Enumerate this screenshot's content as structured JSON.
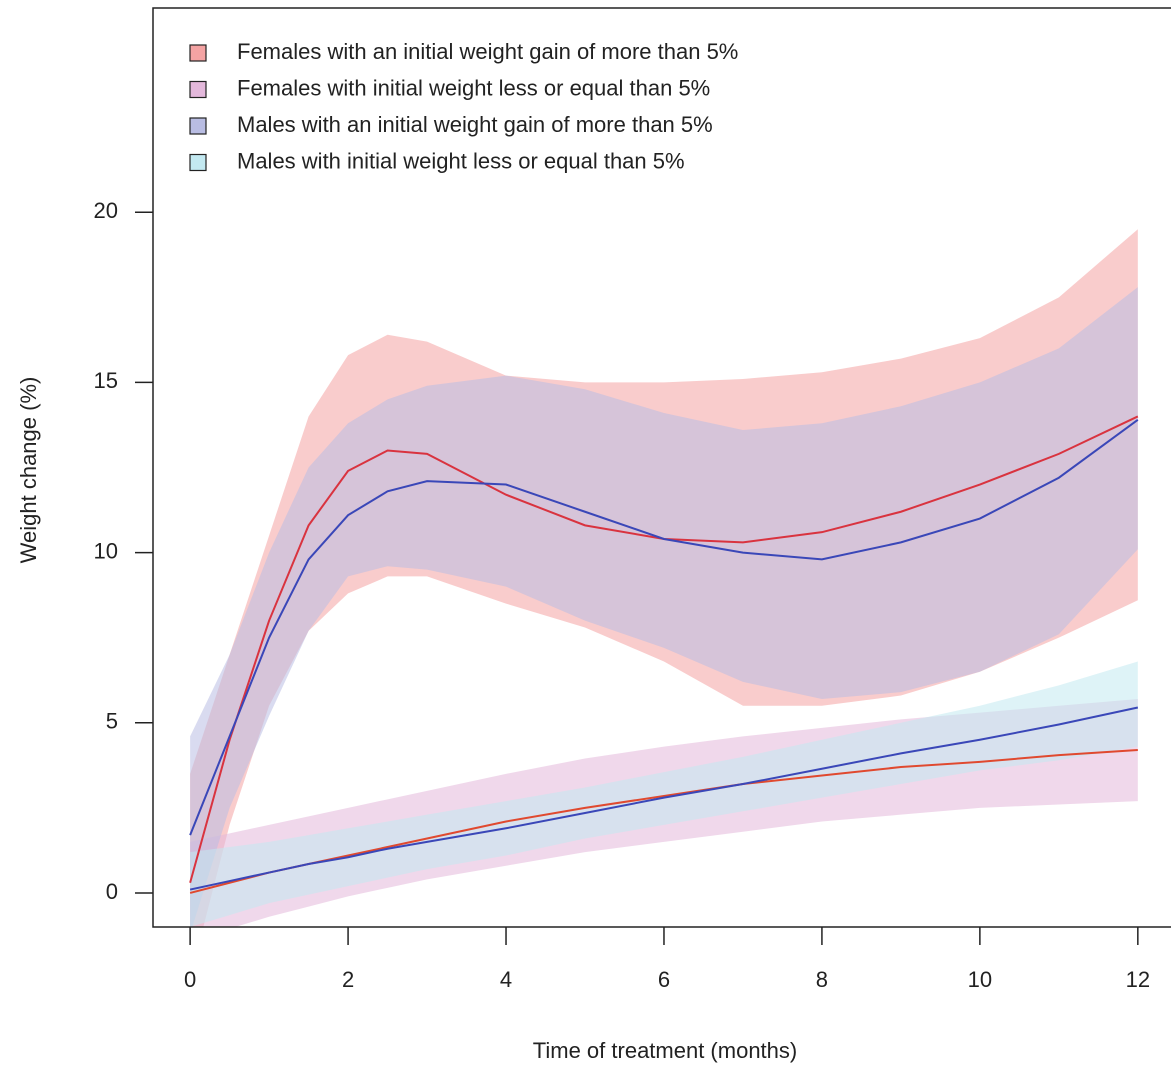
{
  "chart_data": {
    "type": "line-band",
    "x_label": "Time of treatment (months)",
    "y_label": "Weight change (%)",
    "x": [
      0,
      0.5,
      1,
      1.5,
      2,
      2.5,
      3,
      4,
      5,
      6,
      7,
      8,
      9,
      10,
      11,
      12
    ],
    "xlim": [
      -0.47,
      12.42
    ],
    "ylim": [
      -1.0,
      26.0
    ],
    "xticks": [
      0,
      2,
      4,
      6,
      8,
      10,
      12
    ],
    "yticks": [
      0,
      5,
      10,
      15,
      20
    ],
    "legend": "top-left",
    "series": [
      {
        "name": "Females with an initial weight gain of more than 5%",
        "color": "#f4a3a3",
        "line_color": "#d9333f",
        "values": [
          0.3,
          4.5,
          8.0,
          10.8,
          12.4,
          13.0,
          12.9,
          11.7,
          10.8,
          10.4,
          10.3,
          10.6,
          11.2,
          12.0,
          12.9,
          14.0
        ],
        "upper": [
          3.5,
          7.0,
          10.5,
          14.0,
          15.8,
          16.4,
          16.2,
          15.2,
          15.0,
          15.0,
          15.1,
          15.3,
          15.7,
          16.3,
          17.5,
          19.5
        ],
        "lower": [
          -2.5,
          2.0,
          5.5,
          7.7,
          8.8,
          9.3,
          9.3,
          8.5,
          7.8,
          6.8,
          5.5,
          5.5,
          5.8,
          6.5,
          7.5,
          8.6
        ]
      },
      {
        "name": "Females with initial weight less or equal than 5%",
        "color": "#e3b8db",
        "line_color": "#e0492f",
        "values": [
          0.0,
          0.3,
          0.6,
          0.85,
          1.1,
          1.35,
          1.6,
          2.1,
          2.5,
          2.85,
          3.2,
          3.45,
          3.7,
          3.85,
          4.05,
          4.2
        ],
        "upper": [
          1.5,
          1.75,
          2.0,
          2.25,
          2.5,
          2.75,
          3.0,
          3.5,
          3.95,
          4.3,
          4.6,
          4.85,
          5.1,
          5.3,
          5.5,
          5.7
        ],
        "lower": [
          -1.4,
          -1.05,
          -0.7,
          -0.4,
          -0.1,
          0.15,
          0.4,
          0.8,
          1.2,
          1.5,
          1.8,
          2.1,
          2.3,
          2.5,
          2.6,
          2.7
        ]
      },
      {
        "name": "Males with an initial weight gain of more than 5%",
        "color": "#b9bde3",
        "line_color": "#3a47b8",
        "values": [
          1.7,
          4.6,
          7.5,
          9.8,
          11.1,
          11.8,
          12.1,
          12.0,
          11.2,
          10.4,
          10.0,
          9.8,
          10.3,
          11.0,
          12.2,
          13.9
        ],
        "upper": [
          4.6,
          7.0,
          10.0,
          12.5,
          13.8,
          14.5,
          14.9,
          15.2,
          14.8,
          14.1,
          13.6,
          13.8,
          14.3,
          15.0,
          16.0,
          17.8
        ],
        "lower": [
          -1.2,
          2.5,
          5.2,
          7.7,
          9.3,
          9.6,
          9.5,
          9.0,
          8.0,
          7.2,
          6.2,
          5.7,
          5.9,
          6.5,
          7.6,
          10.1
        ]
      },
      {
        "name": "Males with initial weight less or equal than 5%",
        "color": "#c3e9f1",
        "line_color": "#3a47b8",
        "values": [
          0.1,
          0.35,
          0.6,
          0.85,
          1.05,
          1.3,
          1.5,
          1.9,
          2.35,
          2.8,
          3.2,
          3.65,
          4.1,
          4.5,
          4.95,
          5.45
        ],
        "upper": [
          1.2,
          1.35,
          1.5,
          1.7,
          1.9,
          2.1,
          2.3,
          2.7,
          3.1,
          3.55,
          4.0,
          4.5,
          5.0,
          5.5,
          6.1,
          6.8
        ],
        "lower": [
          -1.0,
          -0.65,
          -0.3,
          -0.05,
          0.2,
          0.45,
          0.7,
          1.1,
          1.6,
          2.0,
          2.4,
          2.8,
          3.2,
          3.6,
          3.9,
          4.3
        ]
      }
    ]
  }
}
